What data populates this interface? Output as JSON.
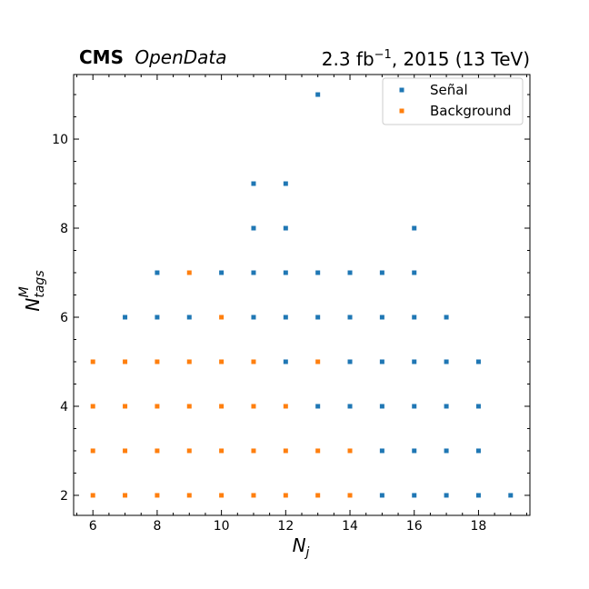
{
  "chart_data": {
    "type": "scatter",
    "title_left_bold": "CMS",
    "title_left_italic": "OpenData",
    "title_right": "2.3 fb⁻¹, 2015 (13 TeV)",
    "xlabel": "N_j",
    "ylabel": "N^M_tags",
    "xlim": [
      5.4,
      19.6
    ],
    "ylim": [
      1.55,
      11.45
    ],
    "xticks": [
      6,
      8,
      10,
      12,
      14,
      16,
      18
    ],
    "yticks": [
      2,
      4,
      6,
      8,
      10
    ],
    "grid": false,
    "legend_position": "top-right",
    "series": [
      {
        "name": "Señal",
        "color": "#1f77b4",
        "points": [
          [
            13,
            11
          ],
          [
            11,
            9
          ],
          [
            12,
            9
          ],
          [
            11,
            8
          ],
          [
            12,
            8
          ],
          [
            16,
            8
          ],
          [
            8,
            7
          ],
          [
            10,
            7
          ],
          [
            11,
            7
          ],
          [
            12,
            7
          ],
          [
            13,
            7
          ],
          [
            14,
            7
          ],
          [
            15,
            7
          ],
          [
            16,
            7
          ],
          [
            7,
            6
          ],
          [
            8,
            6
          ],
          [
            9,
            6
          ],
          [
            11,
            6
          ],
          [
            12,
            6
          ],
          [
            13,
            6
          ],
          [
            14,
            6
          ],
          [
            15,
            6
          ],
          [
            16,
            6
          ],
          [
            17,
            6
          ],
          [
            12,
            5
          ],
          [
            14,
            5
          ],
          [
            15,
            5
          ],
          [
            16,
            5
          ],
          [
            17,
            5
          ],
          [
            18,
            5
          ],
          [
            13,
            4
          ],
          [
            14,
            4
          ],
          [
            15,
            4
          ],
          [
            16,
            4
          ],
          [
            17,
            4
          ],
          [
            18,
            4
          ],
          [
            15,
            3
          ],
          [
            16,
            3
          ],
          [
            17,
            3
          ],
          [
            18,
            3
          ],
          [
            15,
            2
          ],
          [
            16,
            2
          ],
          [
            17,
            2
          ],
          [
            18,
            2
          ],
          [
            19,
            2
          ]
        ]
      },
      {
        "name": "Background",
        "color": "#ff7f0e",
        "points": [
          [
            9,
            7
          ],
          [
            10,
            6
          ],
          [
            6,
            5
          ],
          [
            7,
            5
          ],
          [
            8,
            5
          ],
          [
            9,
            5
          ],
          [
            10,
            5
          ],
          [
            11,
            5
          ],
          [
            13,
            5
          ],
          [
            6,
            4
          ],
          [
            7,
            4
          ],
          [
            8,
            4
          ],
          [
            9,
            4
          ],
          [
            10,
            4
          ],
          [
            11,
            4
          ],
          [
            12,
            4
          ],
          [
            6,
            3
          ],
          [
            7,
            3
          ],
          [
            8,
            3
          ],
          [
            9,
            3
          ],
          [
            10,
            3
          ],
          [
            11,
            3
          ],
          [
            12,
            3
          ],
          [
            13,
            3
          ],
          [
            14,
            3
          ],
          [
            6,
            2
          ],
          [
            7,
            2
          ],
          [
            8,
            2
          ],
          [
            9,
            2
          ],
          [
            10,
            2
          ],
          [
            11,
            2
          ],
          [
            12,
            2
          ],
          [
            13,
            2
          ],
          [
            14,
            2
          ]
        ]
      }
    ]
  }
}
